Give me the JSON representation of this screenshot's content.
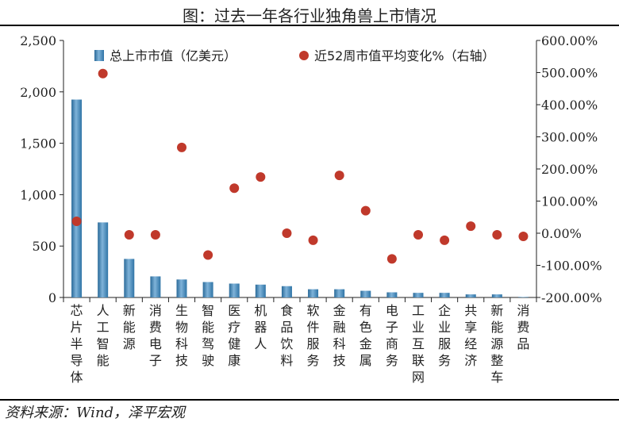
{
  "title": "图：过去一年各行业独角兽上市情况",
  "source": "资料来源：Wind，泽平宏观",
  "chart_data": {
    "type": "bar",
    "categories": [
      "芯片半导体",
      "人工智能",
      "新能源",
      "消费电子",
      "生物科技",
      "智能驾驶",
      "医疗健康",
      "机器人",
      "食品饮料",
      "软件服务",
      "金融科技",
      "有色金属",
      "电子商务",
      "工业互联网",
      "企业服务",
      "共享经济",
      "新能源整车",
      "消费品"
    ],
    "series": [
      {
        "name": "总上市市值（亿美元）",
        "type": "bar",
        "axis": "left",
        "color": "#3b7fb0",
        "values": [
          1925,
          730,
          375,
          205,
          175,
          150,
          135,
          125,
          110,
          80,
          80,
          65,
          50,
          45,
          45,
          30,
          30,
          5
        ]
      },
      {
        "name": "近52周市值平均变化%（右轴）",
        "type": "scatter",
        "axis": "right",
        "color": "#c0392b",
        "values": [
          37,
          497,
          -5,
          -5,
          267,
          -68,
          140,
          175,
          0,
          -22,
          180,
          70,
          -80,
          -5,
          -22,
          22,
          -5,
          -10
        ]
      }
    ],
    "y_left": {
      "min": 0,
      "max": 2500,
      "step": 500,
      "ticks": [
        "0",
        "500",
        "1,000",
        "1,500",
        "2,000",
        "2,500"
      ]
    },
    "y_right": {
      "min": -200,
      "max": 600,
      "step": 100,
      "ticks": [
        "-200.00%",
        "-100.00%",
        "0.00%",
        "100.00%",
        "200.00%",
        "300.00%",
        "400.00%",
        "500.00%",
        "600.00%"
      ]
    },
    "legend_position": "top",
    "grid": false
  }
}
